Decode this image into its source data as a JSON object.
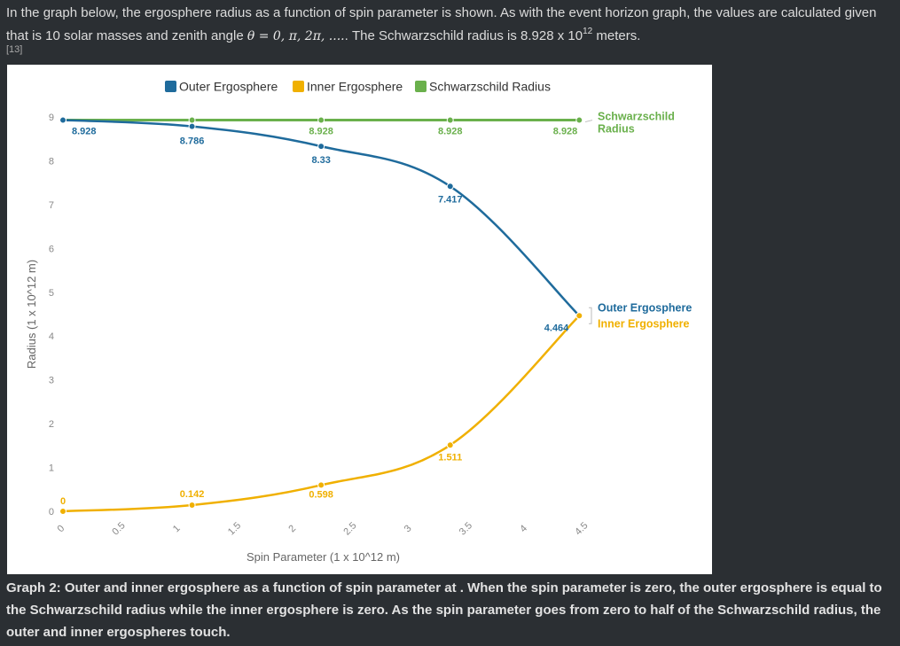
{
  "intro": {
    "part1": "In the graph below, the ergosphere radius as a function of spin parameter is shown. As with the event horizon graph, the values are calculated given that is 10 solar masses and zenith angle ",
    "math": "θ = 0, π, 2π, ....",
    "part2": ". The Schwarzschild radius is 8.928 x 10",
    "exp": "12",
    "part3": " meters.",
    "ref": "[13]"
  },
  "caption": "Graph 2: Outer and inner ergosphere as a function of spin parameter at . When the spin parameter is zero, the outer ergosphere is equal to the Schwarzschild radius while the inner ergosphere is zero. As the spin parameter goes from zero to half of the Schwarzschild radius, the outer and inner ergospheres touch.",
  "chart_data": {
    "type": "line",
    "title": "",
    "xlabel": "Spin Parameter (1 x 10^12 m)",
    "ylabel": "Radius (1 x 10^12 m)",
    "xlim": [
      0,
      4.5
    ],
    "ylim": [
      0,
      9
    ],
    "x_ticks": [
      "0",
      "0.5",
      "1",
      "1.5",
      "2",
      "2.5",
      "3",
      "3.5",
      "4",
      "4.5"
    ],
    "y_ticks": [
      "0",
      "1",
      "2",
      "3",
      "4",
      "5",
      "6",
      "7",
      "8",
      "9"
    ],
    "legend": [
      "Outer Ergosphere",
      "Inner Ergosphere",
      "Schwarzschild Radius"
    ],
    "legend_position": "top",
    "series": [
      {
        "name": "Outer Ergosphere",
        "color": "#1f6b9c",
        "end_label": "Outer Ergosphere",
        "points": [
          {
            "x": 0,
            "y": 8.928,
            "label": "8.928"
          },
          {
            "x": 1.116,
            "y": 8.786,
            "label": "8.786"
          },
          {
            "x": 2.232,
            "y": 8.33,
            "label": "8.33"
          },
          {
            "x": 3.348,
            "y": 7.417,
            "label": "7.417"
          },
          {
            "x": 4.464,
            "y": 4.464,
            "label": "4.464"
          }
        ]
      },
      {
        "name": "Inner Ergosphere",
        "color": "#f0b000",
        "end_label": "Inner Ergosphere",
        "points": [
          {
            "x": 0,
            "y": 0,
            "label": "0"
          },
          {
            "x": 1.116,
            "y": 0.142,
            "label": "0.142"
          },
          {
            "x": 2.232,
            "y": 0.598,
            "label": "0.598"
          },
          {
            "x": 3.348,
            "y": 1.511,
            "label": "1.511"
          },
          {
            "x": 4.464,
            "y": 4.464,
            "label": ""
          }
        ]
      },
      {
        "name": "Schwarzschild Radius",
        "color": "#6ab04c",
        "end_label": "Schwarzschild Radius",
        "points": [
          {
            "x": 0,
            "y": 8.928,
            "label": ""
          },
          {
            "x": 1.116,
            "y": 8.928,
            "label": ""
          },
          {
            "x": 2.232,
            "y": 8.928,
            "label": "8.928"
          },
          {
            "x": 3.348,
            "y": 8.928,
            "label": "8.928"
          },
          {
            "x": 4.464,
            "y": 8.928,
            "label": "8.928"
          }
        ]
      }
    ]
  }
}
